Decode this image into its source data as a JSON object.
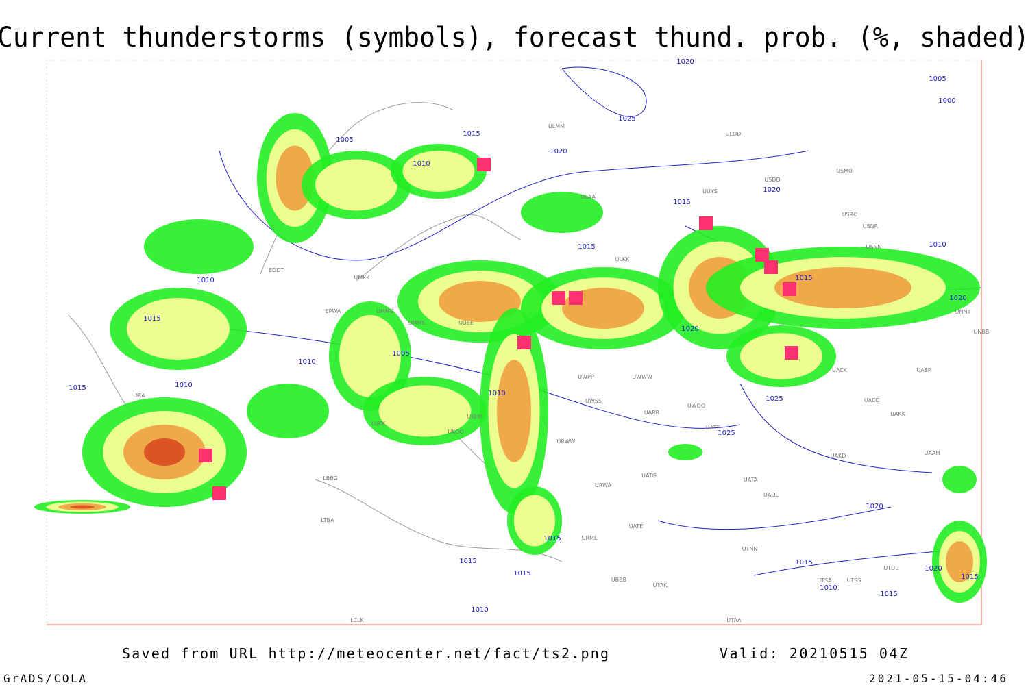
{
  "title": "Current thunderstorms (symbols), forecast thund. prob. (%, shaded)",
  "source": "Saved from URL http://meteocenter.net/fact/ts2.png",
  "valid": "Valid: 20210515 04Z",
  "software": "GrADS/COLA",
  "timestamp": "2021-05-15-04:46",
  "isobar_labels": [
    "1020",
    "1005",
    "1000",
    "1025",
    "1020",
    "1005",
    "1010",
    "1015",
    "1020",
    "1015",
    "1015",
    "1010",
    "1010",
    "1015",
    "1015",
    "1020",
    "1020",
    "1005",
    "1010",
    "1010",
    "1015",
    "1010",
    "1025",
    "1025",
    "1020",
    "1015",
    "1015",
    "1015",
    "1015",
    "1020",
    "1015",
    "1010",
    "1015",
    "1010"
  ],
  "station_labels": [
    "ULMM",
    "ULDD",
    "USMU",
    "USDD",
    "ULAA",
    "UUYS",
    "USRO",
    "USNR",
    "USNN",
    "ULKK",
    "EDDT",
    "UMKK",
    "EPWA",
    "UMMG",
    "UMMS",
    "UUEE",
    "UWWW",
    "UWPP",
    "UWSS",
    "UARR",
    "UWOO",
    "UATT",
    "UKHH",
    "UKOO",
    "LUKK",
    "URWW",
    "UAKD",
    "UAAH",
    "UATG",
    "URWA",
    "UATA",
    "UAOL",
    "UACC",
    "UAKK",
    "UASP",
    "UACK",
    "UNBB",
    "UNNT",
    "LIRA",
    "LBBG",
    "LTBA",
    "UATE",
    "UTNN",
    "URML",
    "UBBB",
    "UTAK",
    "UTAA",
    "UTSA",
    "UTSS",
    "UTDL",
    "LCLK"
  ]
}
